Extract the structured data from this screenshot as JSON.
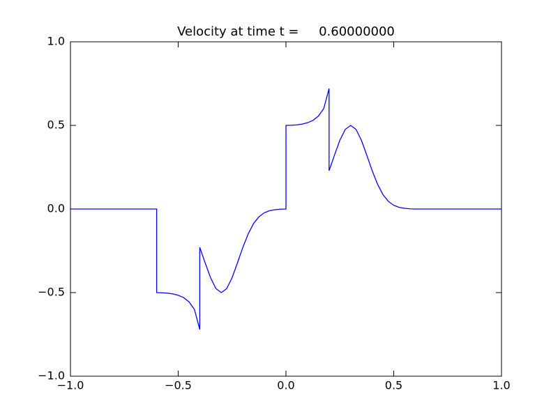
{
  "chart_data": {
    "type": "line",
    "title": "Velocity at time t =     0.60000000",
    "x": [
      -1,
      -0.6,
      -0.6,
      -0.575,
      -0.55,
      -0.525,
      -0.5,
      -0.475,
      -0.45,
      -0.425,
      -0.4,
      -0.4,
      -0.375,
      -0.35,
      -0.325,
      -0.3,
      -0.275,
      -0.25,
      -0.225,
      -0.2,
      -0.175,
      -0.15,
      -0.125,
      -0.1,
      -0.075,
      -0.05,
      -0.025,
      0,
      0,
      0.025,
      0.05,
      0.075,
      0.1,
      0.125,
      0.15,
      0.175,
      0.2,
      0.2,
      0.225,
      0.25,
      0.275,
      0.3,
      0.325,
      0.35,
      0.375,
      0.4,
      0.425,
      0.45,
      0.475,
      0.5,
      0.525,
      0.55,
      0.575,
      0.6,
      1
    ],
    "series": [
      {
        "color": "#0000ff",
        "values": [
          0,
          0,
          -0.5,
          -0.501,
          -0.503,
          -0.508,
          -0.516,
          -0.53,
          -0.555,
          -0.6,
          -0.72,
          -0.229,
          -0.322,
          -0.411,
          -0.476,
          -0.5,
          -0.476,
          -0.411,
          -0.322,
          -0.229,
          -0.148,
          -0.086,
          -0.046,
          -0.022,
          -0.01,
          -0.004,
          -0.001,
          0,
          0.5,
          0.501,
          0.503,
          0.508,
          0.516,
          0.53,
          0.555,
          0.6,
          0.72,
          0.229,
          0.322,
          0.411,
          0.476,
          0.5,
          0.476,
          0.411,
          0.322,
          0.229,
          0.148,
          0.086,
          0.046,
          0.022,
          0.01,
          0.004,
          0.001,
          0,
          0
        ]
      }
    ],
    "xlim": [
      -1,
      1
    ],
    "ylim": [
      -1,
      1
    ],
    "xticks": [
      {
        "value": -1,
        "label": "−1.0"
      },
      {
        "value": -0.5,
        "label": "−0.5"
      },
      {
        "value": 0,
        "label": "0.0"
      },
      0.5,
      {
        "value": 1,
        "label": "1.0"
      }
    ],
    "yticks": [
      {
        "value": -1,
        "label": "−1.0"
      },
      {
        "value": -0.5,
        "label": "−0.5"
      },
      {
        "value": 0,
        "label": "0.0"
      },
      0.5,
      {
        "value": 1,
        "label": "1.0"
      }
    ]
  }
}
